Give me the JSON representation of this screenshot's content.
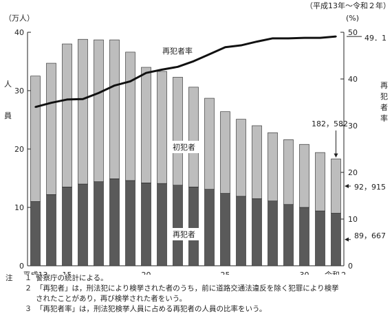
{
  "chart_data": {
    "type": "bar",
    "period": "（平成13年～令和２年）",
    "left_unit": "（万人）",
    "right_unit": "(%)",
    "left_axis_label": "人員",
    "right_axis_label": "再犯者率",
    "ylim_left": [
      0,
      40
    ],
    "ylim_right": [
      0,
      50
    ],
    "left_ticks": [
      "0",
      "10",
      "20",
      "30",
      "40"
    ],
    "right_ticks": [
      "0",
      "10",
      "20",
      "30",
      "40",
      "50"
    ],
    "categories": [
      "13",
      "14",
      "15",
      "16",
      "17",
      "18",
      "19",
      "20",
      "21",
      "22",
      "23",
      "24",
      "25",
      "26",
      "27",
      "28",
      "29",
      "30",
      "元",
      "2"
    ],
    "x_tick_labels": [
      {
        "index": 0,
        "text": "平成13"
      },
      {
        "index": 2,
        "text": "15"
      },
      {
        "index": 7,
        "text": "20"
      },
      {
        "index": 12,
        "text": "25"
      },
      {
        "index": 17,
        "text": "30"
      },
      {
        "index": 19,
        "text": "令和２"
      }
    ],
    "series": [
      {
        "name": "再犯者",
        "type": "bar",
        "color": "#5a5a5a",
        "values": [
          11.0,
          12.2,
          13.5,
          14.0,
          14.4,
          14.9,
          14.6,
          14.2,
          14.1,
          13.8,
          13.5,
          13.1,
          12.4,
          11.9,
          11.5,
          11.1,
          10.5,
          10.0,
          9.4,
          9.0
        ]
      },
      {
        "name": "初犯者",
        "type": "bar",
        "color": "#bdbdbd",
        "values": [
          21.5,
          22.5,
          24.5,
          24.8,
          24.3,
          23.8,
          22.0,
          19.8,
          19.2,
          18.5,
          17.1,
          15.6,
          14.0,
          13.2,
          12.5,
          11.7,
          11.1,
          10.8,
          10.0,
          9.3
        ]
      },
      {
        "name": "再犯者率",
        "type": "line",
        "axis": "right",
        "values": [
          34.0,
          34.9,
          35.6,
          35.7,
          37.0,
          38.6,
          39.5,
          41.3,
          42.0,
          42.6,
          43.8,
          45.3,
          46.8,
          47.2,
          48.0,
          48.7,
          48.7,
          48.8,
          48.8,
          49.1
        ]
      }
    ],
    "annotations": {
      "rate_label": "再犯者率",
      "first_label": "初犯者",
      "repeat_label": "再犯者",
      "rate_last": "49．1",
      "total_last": "182，582",
      "first_last": "92，915",
      "repeat_last": "89，667"
    }
  },
  "notes": {
    "head": "注",
    "items": [
      {
        "num": "１",
        "lines": [
          "警察庁の統計による。"
        ]
      },
      {
        "num": "２",
        "lines": [
          "「再犯者」は，刑法犯により検挙された者のうち，前に道路交通法違反を除く犯罪により検挙",
          "されたことがあり，再び検挙された者をいう。"
        ]
      },
      {
        "num": "３",
        "lines": [
          "「再犯者率」は，刑法犯検挙人員に占める再犯者の人員の比率をいう。"
        ]
      }
    ]
  }
}
